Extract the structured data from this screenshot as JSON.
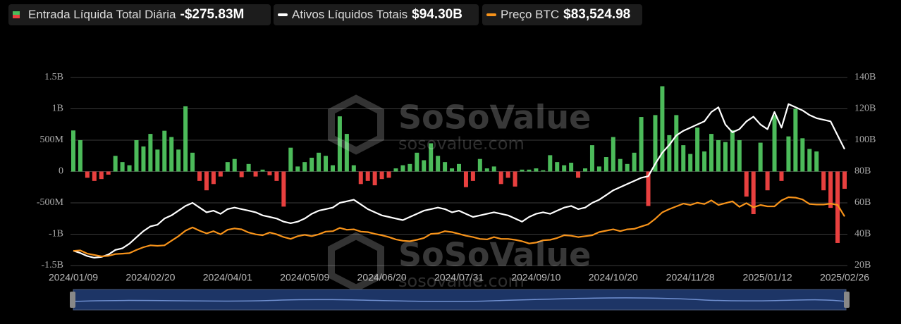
{
  "chart_data": {
    "type": "bar",
    "categories": [
      "2024/01/09",
      null,
      null,
      null,
      null,
      null,
      null,
      null,
      null,
      null,
      null,
      "2024/02/20",
      null,
      null,
      null,
      null,
      null,
      null,
      null,
      null,
      null,
      null,
      "2024/04/01",
      null,
      null,
      null,
      null,
      null,
      null,
      null,
      null,
      null,
      null,
      "2024/05/09",
      null,
      null,
      null,
      null,
      null,
      null,
      null,
      null,
      null,
      null,
      "2024/06/20",
      null,
      null,
      null,
      null,
      null,
      null,
      null,
      null,
      null,
      null,
      "2024/07/31",
      null,
      null,
      null,
      null,
      null,
      null,
      null,
      null,
      null,
      null,
      "2024/09/10",
      null,
      null,
      null,
      null,
      null,
      null,
      null,
      null,
      null,
      null,
      "2024/10/20",
      null,
      null,
      null,
      null,
      null,
      null,
      null,
      null,
      null,
      null,
      "2024/11/28",
      null,
      null,
      null,
      null,
      null,
      null,
      null,
      null,
      null,
      null,
      "2025/01/12",
      null,
      null,
      null,
      null,
      null,
      null,
      null,
      null,
      null,
      null,
      "2025/02/26"
    ],
    "series": [
      {
        "name": "Entrada Líquida Total Diária",
        "type": "bar",
        "headline": "-$275.83M",
        "color": "#4cbb5a",
        "negative_color": "#e8403f",
        "values": [
          655,
          500,
          -100,
          -150,
          -120,
          -50,
          250,
          150,
          100,
          500,
          400,
          600,
          350,
          650,
          550,
          350,
          1040,
          300,
          -150,
          -300,
          -200,
          -80,
          150,
          200,
          -90,
          120,
          -80,
          30,
          -60,
          -150,
          -560,
          380,
          80,
          150,
          220,
          300,
          250,
          100,
          880,
          600,
          100,
          -200,
          -150,
          -220,
          -120,
          -100,
          50,
          100,
          120,
          300,
          180,
          450,
          250,
          150,
          50,
          120,
          -250,
          -150,
          200,
          50,
          80,
          -200,
          -100,
          -240,
          30,
          30,
          50,
          20,
          260,
          150,
          100,
          140,
          -100,
          50,
          420,
          80,
          230,
          550,
          200,
          120,
          300,
          870,
          -550,
          900,
          1360,
          580,
          900,
          420,
          280,
          700,
          320,
          600,
          500,
          470,
          660,
          500,
          -400,
          -680,
          460,
          -300,
          900,
          -150,
          560,
          1000,
          530,
          360,
          320,
          -300,
          -580,
          -1140,
          -275.83
        ]
      },
      {
        "name": "Ativos Líquidos Totais",
        "type": "line",
        "axis": "y2",
        "headline": "$94.30B",
        "color": "#ffffff",
        "values": [
          29.5,
          28,
          26,
          25,
          25.5,
          27,
          30,
          31,
          34,
          38,
          42,
          45,
          46,
          50,
          52,
          55,
          58,
          60,
          57,
          54,
          55,
          53,
          56,
          57,
          56,
          55,
          54,
          52,
          51,
          50,
          48,
          47,
          48,
          50,
          53,
          55,
          56,
          57,
          60,
          61,
          62,
          59,
          56,
          54,
          52,
          51,
          50,
          49,
          51,
          53,
          55,
          56,
          57,
          56,
          54,
          55,
          53,
          51,
          52,
          53,
          54,
          53,
          52,
          50,
          48,
          51,
          53,
          54,
          53,
          55,
          57,
          58,
          56,
          57,
          60,
          62,
          65,
          68,
          70,
          72,
          74,
          76,
          77,
          85,
          92,
          97,
          103,
          106,
          108,
          110,
          112,
          118,
          121,
          110,
          105,
          107,
          112,
          115,
          110,
          107,
          118,
          108,
          123,
          121,
          119,
          116,
          114,
          113,
          112,
          103,
          94.3
        ]
      },
      {
        "name": "Preço BTC",
        "type": "line",
        "axis": "y3",
        "headline": "$83,524.98",
        "color": "#f7931a",
        "values": [
          46000,
          46500,
          43000,
          41500,
          40000,
          40500,
          42500,
          43000,
          43500,
          47000,
          50000,
          52000,
          51500,
          52000,
          57000,
          62000,
          68000,
          71500,
          68000,
          65000,
          67500,
          64000,
          69000,
          70500,
          69500,
          66000,
          64000,
          63000,
          66000,
          64000,
          61000,
          59000,
          62000,
          63500,
          62000,
          64000,
          67000,
          67500,
          71000,
          69000,
          69500,
          67000,
          66500,
          64500,
          63000,
          61000,
          58500,
          57000,
          56500,
          58000,
          60000,
          64500,
          65000,
          67500,
          66500,
          64500,
          62500,
          61000,
          59000,
          58500,
          61000,
          59000,
          59000,
          58000,
          56500,
          54000,
          55000,
          57500,
          58000,
          60000,
          63000,
          62500,
          61000,
          62000,
          63000,
          66500,
          68000,
          69500,
          67500,
          69500,
          70000,
          72500,
          75000,
          81000,
          88000,
          91500,
          94500,
          97500,
          96000,
          98500,
          97000,
          101000,
          96000,
          98000,
          100000,
          94000,
          98000,
          93500,
          96000,
          94500,
          94500,
          101000,
          104500,
          104000,
          102000,
          97000,
          96500,
          96500,
          97500,
          96000,
          83524.98
        ]
      }
    ],
    "ylim": [
      -1500,
      1500
    ],
    "yticks": [
      {
        "value": -1500,
        "label": "-1.5B"
      },
      {
        "value": -1000,
        "label": "-1B"
      },
      {
        "value": -500,
        "label": "-500M"
      },
      0,
      {
        "value": 500,
        "label": "500M"
      },
      {
        "value": 1000,
        "label": "1B"
      },
      {
        "value": 1500,
        "label": "1.5B"
      }
    ],
    "y2lim": [
      20,
      140
    ],
    "y2ticks": [
      {
        "value": 20,
        "label": "20B"
      },
      {
        "value": 40,
        "label": "40B"
      },
      {
        "value": 60,
        "label": "60B"
      },
      {
        "value": 80,
        "label": "80B"
      },
      {
        "value": 100,
        "label": "100B"
      },
      {
        "value": 120,
        "label": "120B"
      },
      {
        "value": 140,
        "label": "140B"
      }
    ],
    "y3lim": [
      30000,
      235000
    ],
    "grid": true,
    "watermark": {
      "brand": "SoSoValue",
      "url": "sosovalue.com"
    }
  }
}
